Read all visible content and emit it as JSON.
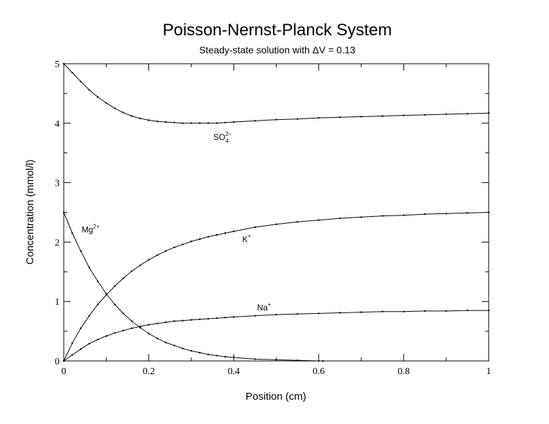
{
  "chart_data": {
    "type": "line",
    "title": "Poisson-Nernst-Planck System",
    "subtitle": "Steady-state solution with ΔV = 0.13",
    "xlabel": "Position (cm)",
    "ylabel": "Concentration (mmol/l)",
    "xlim": [
      0,
      1
    ],
    "ylim": [
      0,
      5
    ],
    "x_ticks": [
      "0",
      "0.2",
      "0.4",
      "0.6",
      "0.8",
      "1"
    ],
    "y_ticks": [
      "0",
      "1",
      "2",
      "3",
      "4",
      "5"
    ],
    "grid": false,
    "legend": "none",
    "series": [
      {
        "name": "SO42−",
        "label_base": "SO",
        "label_sub": "4",
        "label_sup": "2−",
        "x": [
          0,
          0.02,
          0.04,
          0.06,
          0.08,
          0.1,
          0.12,
          0.14,
          0.16,
          0.18,
          0.2,
          0.22,
          0.24,
          0.26,
          0.28,
          0.3,
          0.32,
          0.34,
          0.36,
          0.38,
          0.4,
          0.45,
          0.5,
          0.55,
          0.6,
          0.65,
          0.7,
          0.75,
          0.8,
          0.85,
          0.9,
          0.95,
          1.0
        ],
        "values": [
          5.0,
          4.85,
          4.7,
          4.56,
          4.44,
          4.34,
          4.25,
          4.18,
          4.12,
          4.08,
          4.05,
          4.03,
          4.02,
          4.01,
          4.0,
          4.0,
          4.0,
          4.0,
          4.0,
          4.01,
          4.02,
          4.04,
          4.06,
          4.07,
          4.09,
          4.1,
          4.11,
          4.12,
          4.13,
          4.14,
          4.15,
          4.16,
          4.17
        ]
      },
      {
        "name": "K+",
        "label_base": "K",
        "label_sub": "",
        "label_sup": "+",
        "x": [
          0,
          0.02,
          0.04,
          0.06,
          0.08,
          0.1,
          0.12,
          0.14,
          0.16,
          0.18,
          0.2,
          0.22,
          0.24,
          0.26,
          0.28,
          0.3,
          0.32,
          0.34,
          0.36,
          0.38,
          0.4,
          0.45,
          0.5,
          0.55,
          0.6,
          0.65,
          0.7,
          0.75,
          0.8,
          0.85,
          0.9,
          0.95,
          1.0
        ],
        "values": [
          0.0,
          0.3,
          0.55,
          0.76,
          0.95,
          1.11,
          1.26,
          1.39,
          1.51,
          1.61,
          1.7,
          1.78,
          1.85,
          1.91,
          1.96,
          2.01,
          2.05,
          2.09,
          2.12,
          2.15,
          2.18,
          2.25,
          2.3,
          2.34,
          2.37,
          2.4,
          2.42,
          2.44,
          2.45,
          2.47,
          2.48,
          2.49,
          2.5
        ]
      },
      {
        "name": "Na+",
        "label_base": "Na",
        "label_sub": "",
        "label_sup": "+",
        "x": [
          0,
          0.02,
          0.04,
          0.06,
          0.08,
          0.1,
          0.12,
          0.14,
          0.16,
          0.18,
          0.2,
          0.22,
          0.24,
          0.26,
          0.28,
          0.3,
          0.32,
          0.34,
          0.36,
          0.38,
          0.4,
          0.45,
          0.5,
          0.55,
          0.6,
          0.65,
          0.7,
          0.75,
          0.8,
          0.85,
          0.9,
          0.95,
          1.0
        ],
        "values": [
          0.0,
          0.1,
          0.2,
          0.29,
          0.36,
          0.42,
          0.47,
          0.51,
          0.55,
          0.58,
          0.61,
          0.63,
          0.65,
          0.67,
          0.68,
          0.69,
          0.7,
          0.71,
          0.72,
          0.73,
          0.74,
          0.76,
          0.78,
          0.79,
          0.8,
          0.81,
          0.82,
          0.83,
          0.83,
          0.84,
          0.84,
          0.85,
          0.85
        ]
      },
      {
        "name": "Mg2+",
        "label_base": "Mg",
        "label_sub": "",
        "label_sup": "2+",
        "x": [
          0,
          0.02,
          0.04,
          0.06,
          0.08,
          0.1,
          0.12,
          0.14,
          0.16,
          0.18,
          0.2,
          0.22,
          0.24,
          0.26,
          0.28,
          0.3,
          0.32,
          0.34,
          0.36,
          0.38,
          0.4,
          0.45,
          0.5,
          0.55,
          0.6,
          0.61
        ],
        "values": [
          2.5,
          2.15,
          1.85,
          1.57,
          1.34,
          1.13,
          0.95,
          0.8,
          0.67,
          0.56,
          0.46,
          0.38,
          0.31,
          0.26,
          0.21,
          0.17,
          0.14,
          0.11,
          0.09,
          0.07,
          0.06,
          0.03,
          0.02,
          0.01,
          0.0,
          0.0
        ]
      }
    ]
  }
}
